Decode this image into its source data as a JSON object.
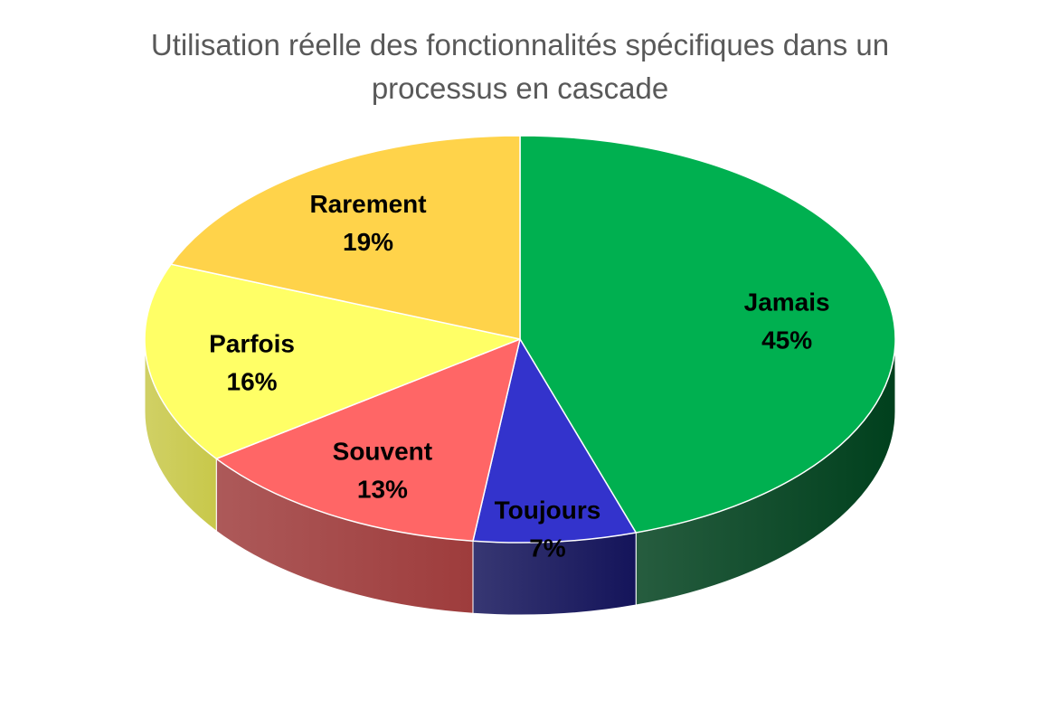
{
  "title_lines": [
    "Utilisation réelle des fonctionnalités spécifiques dans un",
    "processus en cascade"
  ],
  "chart_data": {
    "type": "pie",
    "title": "Utilisation réelle des fonctionnalités spécifiques dans un processus en cascade",
    "style": "3d",
    "start": "12 o'clock",
    "direction": "clockwise",
    "slices": [
      {
        "label": "Jamais",
        "value": 45,
        "value_label": "45%",
        "color": "#00B050",
        "side_color": "#00401D"
      },
      {
        "label": "Toujours",
        "value": 7,
        "value_label": "7%",
        "color": "#3333CC",
        "side_color": "#14145A"
      },
      {
        "label": "Souvent",
        "value": 13,
        "value_label": "13%",
        "color": "#FF6666",
        "side_color": "#9E3C3C"
      },
      {
        "label": "Parfois",
        "value": 16,
        "value_label": "16%",
        "color": "#FFFF66",
        "side_color": "#C8C84A"
      },
      {
        "label": "Rarement",
        "value": 19,
        "value_label": "19%",
        "color": "#FFD34A",
        "side_color": "#B08E2C"
      }
    ]
  }
}
